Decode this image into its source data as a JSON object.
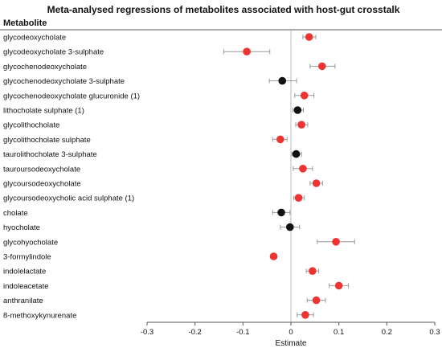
{
  "chart_data": {
    "type": "scatter",
    "subtype": "forest-plot",
    "title": "Meta-analysed regressions of metabolites associated with host-gut crosstalk",
    "column_header": "Metabolite",
    "xlabel": "Estimate",
    "xlim": [
      -0.3,
      0.3
    ],
    "xticks": [
      -0.3,
      -0.2,
      -0.1,
      0,
      0.1,
      0.2,
      0.3
    ],
    "xtick_labels": [
      "-0.3",
      "-0.2",
      "-0.1",
      "0",
      "0.1",
      "0.2",
      "0.3"
    ],
    "grid": false,
    "colors": {
      "significant": "#ee3333",
      "non_significant": "#111111",
      "ci": "#999999",
      "zero_line": "#bbbbbb"
    },
    "rows": [
      {
        "metabolite": "glycodeoxycholate",
        "estimate": 0.038,
        "ci": [
          0.025,
          0.052
        ],
        "significant": true
      },
      {
        "metabolite": "glycodeoxycholate 3-sulphate",
        "estimate": -0.092,
        "ci": [
          -0.14,
          -0.044
        ],
        "significant": true
      },
      {
        "metabolite": "glycochenodeoxycholate",
        "estimate": 0.065,
        "ci": [
          0.04,
          0.092
        ],
        "significant": true
      },
      {
        "metabolite": "glycochenodeoxycholate 3-sulphate",
        "estimate": -0.018,
        "ci": [
          -0.045,
          0.012
        ],
        "significant": false
      },
      {
        "metabolite": "glycochenodeoxycholate glucuronide (1)",
        "estimate": 0.028,
        "ci": [
          0.008,
          0.048
        ],
        "significant": true
      },
      {
        "metabolite": "lithocholate sulphate (1)",
        "estimate": 0.014,
        "ci": [
          0.004,
          0.026
        ],
        "significant": false
      },
      {
        "metabolite": "glycolithocholate",
        "estimate": 0.022,
        "ci": [
          0.01,
          0.035
        ],
        "significant": true
      },
      {
        "metabolite": "glycolithocholate sulphate",
        "estimate": -0.022,
        "ci": [
          -0.038,
          -0.008
        ],
        "significant": true
      },
      {
        "metabolite": "taurolithocholate 3-sulphate",
        "estimate": 0.011,
        "ci": [
          0.002,
          0.022
        ],
        "significant": false
      },
      {
        "metabolite": "tauroursodeoxycholate",
        "estimate": 0.025,
        "ci": [
          0.005,
          0.045
        ],
        "significant": true
      },
      {
        "metabolite": "glycoursodeoxycholate",
        "estimate": 0.053,
        "ci": [
          0.04,
          0.066
        ],
        "significant": true
      },
      {
        "metabolite": "glycoursodeoxycholic acid sulphate (1)",
        "estimate": 0.016,
        "ci": [
          0.006,
          0.028
        ],
        "significant": true
      },
      {
        "metabolite": "cholate",
        "estimate": -0.02,
        "ci": [
          -0.038,
          -0.002
        ],
        "significant": false
      },
      {
        "metabolite": "hyocholate",
        "estimate": -0.002,
        "ci": [
          -0.022,
          0.018
        ],
        "significant": false
      },
      {
        "metabolite": "glycohyocholate",
        "estimate": 0.094,
        "ci": [
          0.055,
          0.133
        ],
        "significant": true
      },
      {
        "metabolite": "3-formylindole",
        "estimate": -0.036,
        "ci": [
          -0.042,
          -0.03
        ],
        "significant": true
      },
      {
        "metabolite": "indolelactate",
        "estimate": 0.045,
        "ci": [
          0.032,
          0.058
        ],
        "significant": true
      },
      {
        "metabolite": "indoleacetate",
        "estimate": 0.1,
        "ci": [
          0.08,
          0.12
        ],
        "significant": true
      },
      {
        "metabolite": "anthranilate",
        "estimate": 0.053,
        "ci": [
          0.034,
          0.072
        ],
        "significant": true
      },
      {
        "metabolite": "8-methoxykynurenate",
        "estimate": 0.03,
        "ci": [
          0.013,
          0.047
        ],
        "significant": true
      }
    ]
  }
}
